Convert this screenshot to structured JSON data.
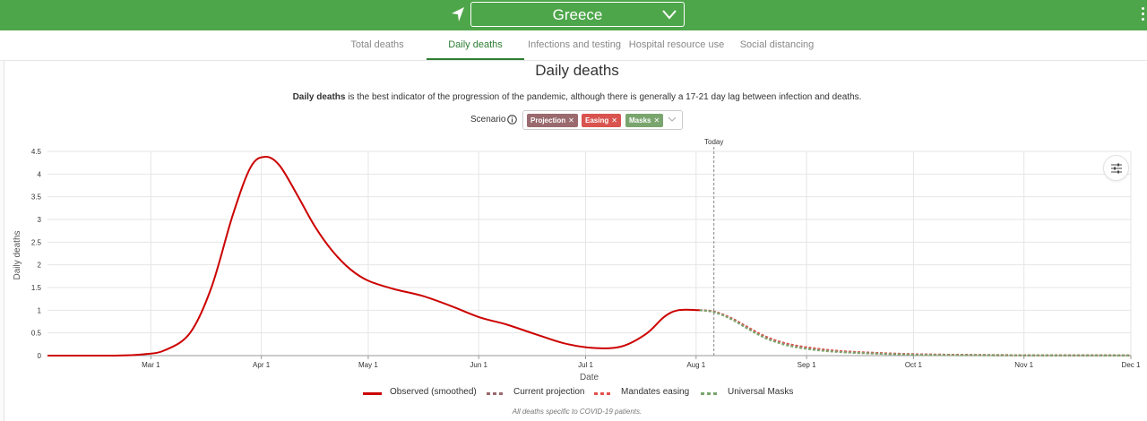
{
  "header": {
    "country": "Greece",
    "colors": {
      "bar": "#4ea64a"
    }
  },
  "tabs": [
    {
      "label": "Total deaths",
      "active": false
    },
    {
      "label": "Daily deaths",
      "active": true
    },
    {
      "label": "Infections and testing",
      "active": false
    },
    {
      "label": "Hospital resource use",
      "active": false
    },
    {
      "label": "Social distancing",
      "active": false
    }
  ],
  "page": {
    "title": "Daily deaths",
    "description_bold": "Daily deaths",
    "description_rest": " is the best indicator of the progression of the pandemic, although there is generally a 17-21 day lag between infection and deaths.",
    "scenario_label": "Scenario",
    "scenarios": [
      {
        "label": "Projection",
        "color": "#9a6a6e"
      },
      {
        "label": "Easing",
        "color": "#d9534f"
      },
      {
        "label": "Masks",
        "color": "#7aa56e"
      }
    ],
    "footnote": "All deaths specific to COVID-19 patients."
  },
  "chart_data": {
    "type": "line",
    "xlabel": "Date",
    "ylabel": "Daily deaths",
    "ylim": [
      0,
      4.5
    ],
    "yticks": [
      "0",
      "0.5",
      "1",
      "1.5",
      "2",
      "2.5",
      "3",
      "3.5",
      "4",
      "4.5"
    ],
    "xlim": [
      "2020-02-01",
      "2020-12-01"
    ],
    "xticks": [
      {
        "date": "2020-03-01",
        "label": "Mar 1"
      },
      {
        "date": "2020-04-01",
        "label": "Apr 1"
      },
      {
        "date": "2020-05-01",
        "label": "May 1"
      },
      {
        "date": "2020-06-01",
        "label": "Jun 1"
      },
      {
        "date": "2020-07-01",
        "label": "Jul 1"
      },
      {
        "date": "2020-08-01",
        "label": "Aug 1"
      },
      {
        "date": "2020-09-01",
        "label": "Sep 1"
      },
      {
        "date": "2020-10-01",
        "label": "Oct 1"
      },
      {
        "date": "2020-11-01",
        "label": "Nov 1"
      },
      {
        "date": "2020-12-01",
        "label": "Dec 1"
      }
    ],
    "today": {
      "date": "2020-08-06",
      "label": "Today"
    },
    "grid": true,
    "legend_position": "bottom",
    "series": [
      {
        "name": "Observed (smoothed)",
        "color": "#cc0000",
        "style": "solid",
        "points": [
          [
            "2020-02-01",
            0
          ],
          [
            "2020-02-20",
            0
          ],
          [
            "2020-02-28",
            0.03
          ],
          [
            "2020-03-05",
            0.12
          ],
          [
            "2020-03-12",
            0.5
          ],
          [
            "2020-03-18",
            1.5
          ],
          [
            "2020-03-24",
            3.1
          ],
          [
            "2020-03-29",
            4.15
          ],
          [
            "2020-04-02",
            4.38
          ],
          [
            "2020-04-06",
            4.2
          ],
          [
            "2020-04-11",
            3.55
          ],
          [
            "2020-04-16",
            2.85
          ],
          [
            "2020-04-21",
            2.3
          ],
          [
            "2020-04-26",
            1.9
          ],
          [
            "2020-05-01",
            1.65
          ],
          [
            "2020-05-08",
            1.47
          ],
          [
            "2020-05-16",
            1.32
          ],
          [
            "2020-05-24",
            1.1
          ],
          [
            "2020-06-01",
            0.85
          ],
          [
            "2020-06-09",
            0.68
          ],
          [
            "2020-06-17",
            0.47
          ],
          [
            "2020-06-25",
            0.27
          ],
          [
            "2020-07-03",
            0.17
          ],
          [
            "2020-07-11",
            0.2
          ],
          [
            "2020-07-18",
            0.48
          ],
          [
            "2020-07-23",
            0.85
          ],
          [
            "2020-07-27",
            1.0
          ],
          [
            "2020-08-02",
            1.0
          ]
        ]
      },
      {
        "name": "Current projection",
        "color": "#9a6a6e",
        "style": "dashed",
        "points": [
          [
            "2020-08-02",
            1.0
          ],
          [
            "2020-08-06",
            0.97
          ],
          [
            "2020-08-11",
            0.82
          ],
          [
            "2020-08-16",
            0.6
          ],
          [
            "2020-08-21",
            0.4
          ],
          [
            "2020-08-27",
            0.25
          ],
          [
            "2020-09-03",
            0.16
          ],
          [
            "2020-09-10",
            0.1
          ],
          [
            "2020-09-20",
            0.06
          ],
          [
            "2020-10-01",
            0.03
          ],
          [
            "2020-10-15",
            0.015
          ],
          [
            "2020-11-01",
            0.008
          ],
          [
            "2020-12-01",
            0.003
          ]
        ]
      },
      {
        "name": "Mandates easing",
        "color": "#e0524f",
        "style": "dashed",
        "points": [
          [
            "2020-08-02",
            1.0
          ],
          [
            "2020-08-06",
            0.97
          ],
          [
            "2020-08-11",
            0.82
          ],
          [
            "2020-08-16",
            0.6
          ],
          [
            "2020-08-21",
            0.4
          ],
          [
            "2020-08-27",
            0.25
          ],
          [
            "2020-09-03",
            0.16
          ],
          [
            "2020-09-10",
            0.1
          ],
          [
            "2020-09-20",
            0.06
          ],
          [
            "2020-10-01",
            0.03
          ],
          [
            "2020-10-15",
            0.015
          ],
          [
            "2020-11-01",
            0.008
          ],
          [
            "2020-12-01",
            0.003
          ]
        ]
      },
      {
        "name": "Universal Masks",
        "color": "#7aa56e",
        "style": "dashed",
        "points": [
          [
            "2020-08-02",
            1.0
          ],
          [
            "2020-08-06",
            0.96
          ],
          [
            "2020-08-11",
            0.8
          ],
          [
            "2020-08-16",
            0.57
          ],
          [
            "2020-08-21",
            0.37
          ],
          [
            "2020-08-27",
            0.22
          ],
          [
            "2020-09-03",
            0.13
          ],
          [
            "2020-09-10",
            0.08
          ],
          [
            "2020-09-20",
            0.045
          ],
          [
            "2020-10-01",
            0.02
          ],
          [
            "2020-10-15",
            0.01
          ],
          [
            "2020-11-01",
            0.005
          ],
          [
            "2020-12-01",
            0.002
          ]
        ]
      }
    ]
  }
}
